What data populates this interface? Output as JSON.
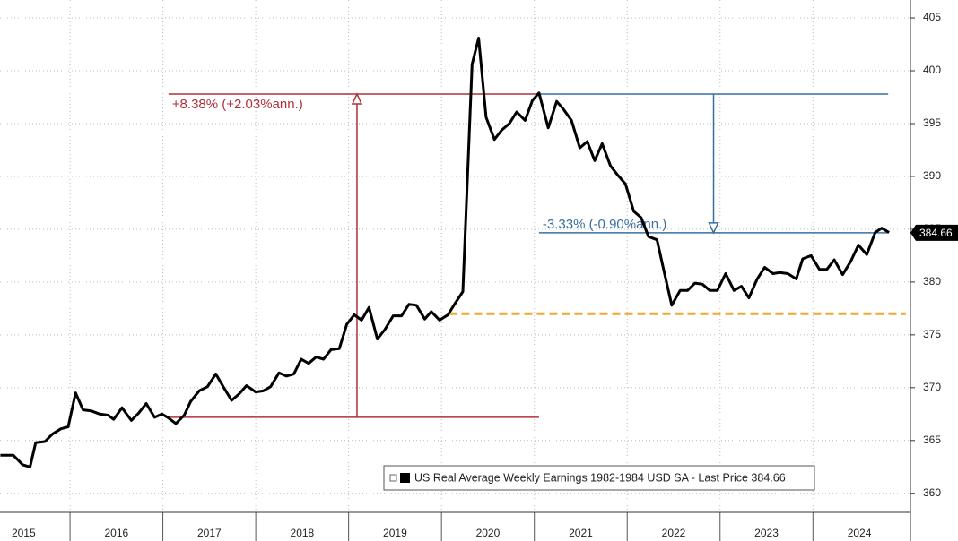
{
  "chart_data": {
    "type": "line",
    "series": [
      {
        "name": "US Real Average Weekly Earnings 1982-1984 USD SA - Last Price 384.66",
        "color": "#000000",
        "x": [
          2015.25,
          2015.39,
          2015.49,
          2015.57,
          2015.63,
          2015.73,
          2015.81,
          2015.9,
          2015.98,
          2016.06,
          2016.14,
          2016.23,
          2016.32,
          2016.41,
          2016.47,
          2016.56,
          2016.66,
          2016.74,
          2016.82,
          2016.91,
          2016.99,
          2017.05,
          2017.14,
          2017.23,
          2017.3,
          2017.39,
          2017.48,
          2017.57,
          2017.65,
          2017.74,
          2017.82,
          2017.9,
          2018.0,
          2018.08,
          2018.16,
          2018.25,
          2018.33,
          2018.41,
          2018.49,
          2018.57,
          2018.65,
          2018.73,
          2018.81,
          2018.9,
          2018.98,
          2019.06,
          2019.14,
          2019.22,
          2019.31,
          2019.39,
          2019.48,
          2019.57,
          2019.65,
          2019.73,
          2019.82,
          2019.89,
          2019.98,
          2020.07,
          2020.14,
          2020.23,
          2020.33,
          2020.4,
          2020.48,
          2020.57,
          2020.65,
          2020.73,
          2020.81,
          2020.9,
          2020.98,
          2021.05,
          2021.15,
          2021.24,
          2021.31,
          2021.4,
          2021.49,
          2021.57,
          2021.65,
          2021.73,
          2021.82,
          2021.9,
          2021.98,
          2022.07,
          2022.15,
          2022.23,
          2022.32,
          2022.4,
          2022.48,
          2022.57,
          2022.65,
          2022.73,
          2022.81,
          2022.89,
          2022.97,
          2023.06,
          2023.15,
          2023.23,
          2023.31,
          2023.4,
          2023.48,
          2023.57,
          2023.64,
          2023.73,
          2023.82,
          2023.89,
          2023.98,
          2024.07,
          2024.15,
          2024.23,
          2024.32,
          2024.41,
          2024.49,
          2024.58,
          2024.67,
          2024.74,
          2024.82
        ],
        "values": [
          363.6,
          363.6,
          362.7,
          362.5,
          364.8,
          364.9,
          365.6,
          366.1,
          366.3,
          369.5,
          367.9,
          367.8,
          367.5,
          367.4,
          367.0,
          368.1,
          366.9,
          367.6,
          368.5,
          367.2,
          367.5,
          367.2,
          366.6,
          367.4,
          368.7,
          369.7,
          370.1,
          371.3,
          370.1,
          368.8,
          369.4,
          370.2,
          369.6,
          369.7,
          370.1,
          371.4,
          371.1,
          371.3,
          372.7,
          372.3,
          372.9,
          372.7,
          373.6,
          373.7,
          376.0,
          376.9,
          376.4,
          377.6,
          374.6,
          375.5,
          376.8,
          376.8,
          377.9,
          377.8,
          376.5,
          377.2,
          376.4,
          376.9,
          377.9,
          379.1,
          400.6,
          403.1,
          395.6,
          393.5,
          394.4,
          395.0,
          396.1,
          395.3,
          397.2,
          397.9,
          394.6,
          397.1,
          396.4,
          395.3,
          392.7,
          393.3,
          391.5,
          393.1,
          391.0,
          390.1,
          389.3,
          386.7,
          386.1,
          384.3,
          384.0,
          380.9,
          377.8,
          379.2,
          379.2,
          379.9,
          379.8,
          379.2,
          379.2,
          380.8,
          379.2,
          379.6,
          378.5,
          380.3,
          381.4,
          380.8,
          380.9,
          380.8,
          380.3,
          382.2,
          382.5,
          381.2,
          381.2,
          382.1,
          380.7,
          382.0,
          383.5,
          382.6,
          384.7,
          385.1,
          384.7
        ]
      }
    ],
    "last_value": 384.66,
    "xlim": [
      2015.246,
      2025.05
    ],
    "xticks": [
      {
        "value": 2015.5,
        "label": "2015"
      },
      {
        "value": 2016.5,
        "label": "2016"
      },
      {
        "value": 2017.5,
        "label": "2017"
      },
      {
        "value": 2018.5,
        "label": "2018"
      },
      {
        "value": 2019.5,
        "label": "2019"
      },
      {
        "value": 2020.5,
        "label": "2020"
      },
      {
        "value": 2021.5,
        "label": "2021"
      },
      {
        "value": 2022.5,
        "label": "2022"
      },
      {
        "value": 2023.5,
        "label": "2023"
      },
      {
        "value": 2024.5,
        "label": "2024"
      }
    ],
    "xgrid": [
      2016,
      2017,
      2018,
      2019,
      2020,
      2021,
      2022,
      2023,
      2024
    ],
    "ylim": [
      358.2,
      406.7
    ],
    "yticks": [
      360,
      365,
      370,
      375,
      380,
      385,
      390,
      395,
      400,
      405
    ],
    "grid": true,
    "legend": "lower right",
    "ranges": [
      {
        "label": "+8.38% (+2.03%ann.)",
        "color": "#b0303a",
        "x_start": 2017.06,
        "x_end": 2021.05,
        "y_low": 367.2,
        "y_high": 397.8,
        "arrow_x": 2019.09,
        "arrow": "up"
      },
      {
        "label": "-3.33% (-0.90%ann.)",
        "color": "#3a6fa0",
        "x_start": 2021.05,
        "x_end": 2024.81,
        "y_low": 384.66,
        "y_high": 397.8,
        "arrow_x": 2022.93,
        "arrow": "down"
      }
    ],
    "reference_lines": [
      {
        "y": 377.0,
        "x_start": 2020.08,
        "x_end": 2025.0,
        "color": "#f0a830",
        "style": "dashed"
      }
    ]
  }
}
